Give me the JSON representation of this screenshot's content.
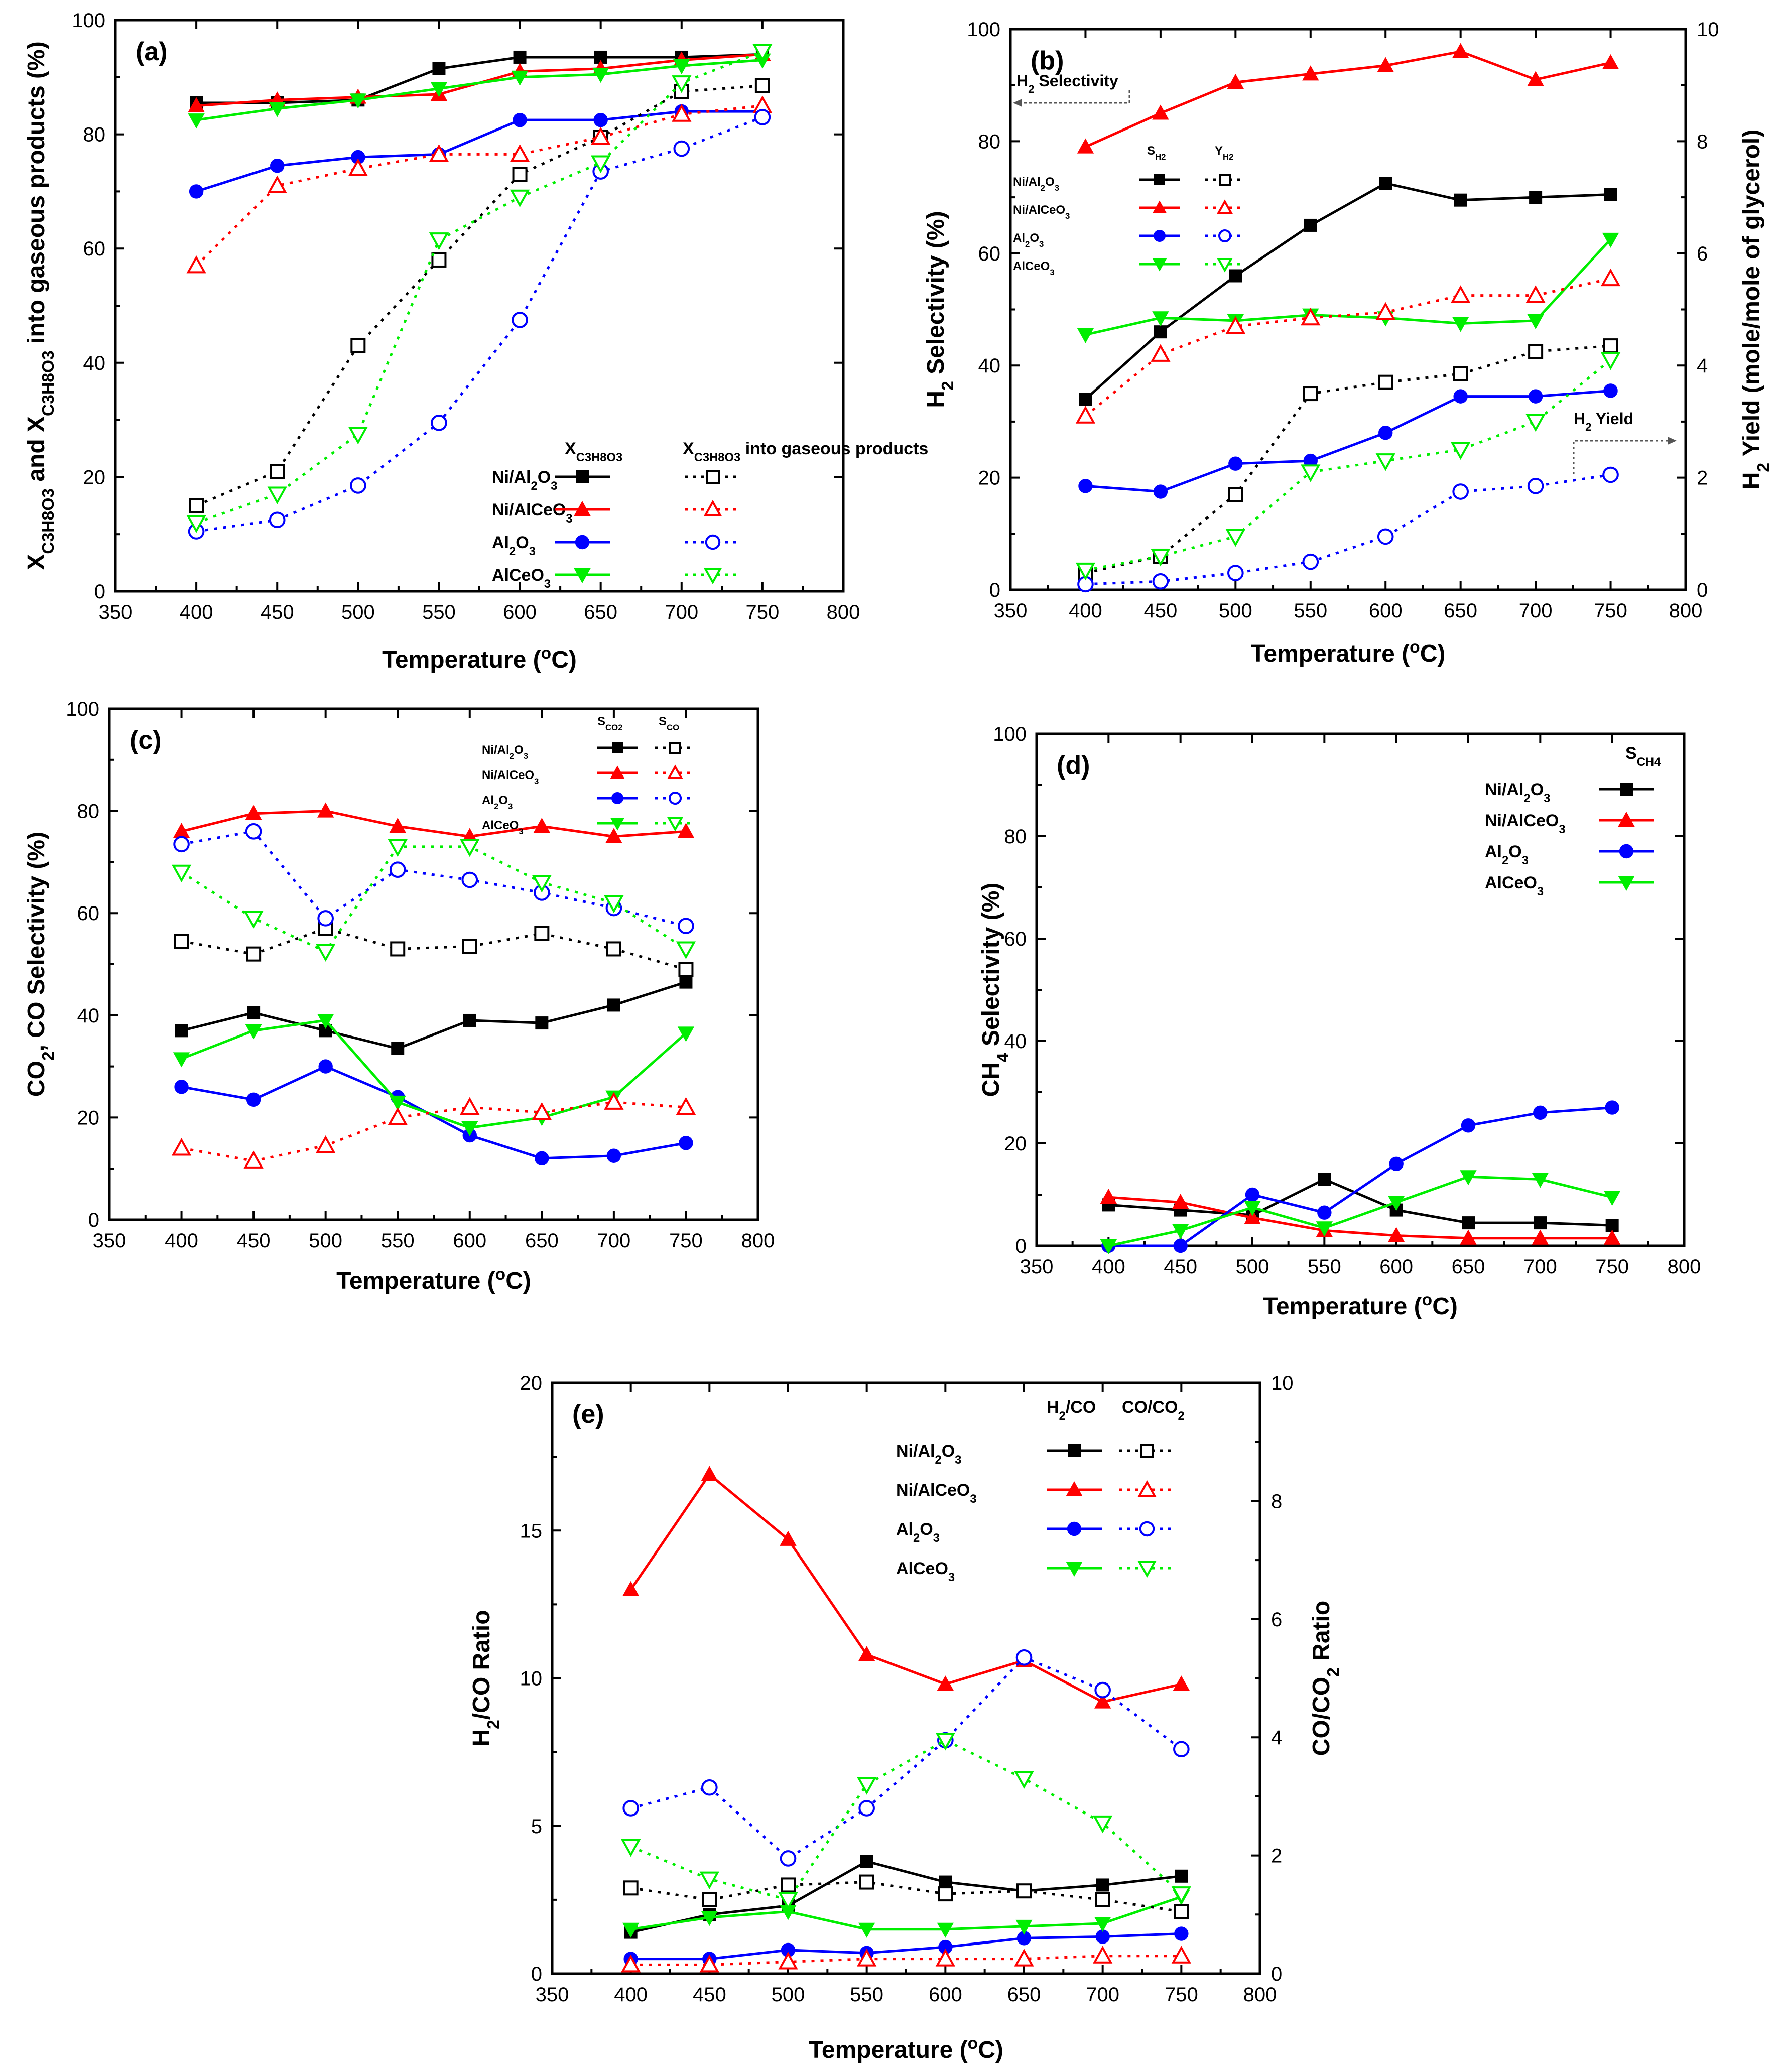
{
  "chart_data": [
    {
      "id": "a",
      "type": "line",
      "panel_label": "(a)",
      "x": [
        400,
        450,
        500,
        550,
        600,
        650,
        700,
        750
      ],
      "xlim": [
        350,
        800
      ],
      "xticks": [
        350,
        400,
        450,
        500,
        550,
        600,
        650,
        700,
        750,
        800
      ],
      "ylim": [
        0,
        100
      ],
      "yticks": [
        0,
        20,
        40,
        60,
        80,
        100
      ],
      "xlabel": "Temperature (°C)",
      "ylabel": "X_C3H8O3 and X_C3H8O3 into gaseous products (%)",
      "legend": {
        "position": "bottom-center",
        "col_headers": [
          "X_C3H8O3",
          "X_C3H8O3 into gaseous products"
        ]
      },
      "series": [
        {
          "name": "Ni/Al2O3",
          "color": "#000000",
          "marker": "square",
          "fill": true,
          "dash": false,
          "values": [
            85.5,
            85.5,
            86,
            91.5,
            93.5,
            93.5,
            93.5,
            94
          ]
        },
        {
          "name": "Ni/AlCeO3",
          "color": "#ff0000",
          "marker": "triangle-up",
          "fill": true,
          "dash": false,
          "values": [
            85,
            86,
            86.5,
            87,
            91,
            91.5,
            93,
            94
          ]
        },
        {
          "name": "Al2O3",
          "color": "#0000ff",
          "marker": "circle",
          "fill": true,
          "dash": false,
          "values": [
            70,
            74.5,
            76,
            76.5,
            82.5,
            82.5,
            84,
            84
          ]
        },
        {
          "name": "AlCeO3",
          "color": "#00ee00",
          "marker": "triangle-down",
          "fill": true,
          "dash": false,
          "values": [
            82.5,
            84.5,
            86,
            88,
            90,
            90.5,
            92,
            93
          ]
        },
        {
          "name": "Ni/Al2O3",
          "color": "#000000",
          "marker": "square",
          "fill": false,
          "dash": true,
          "values": [
            15,
            21,
            43,
            58,
            73,
            79.5,
            87.5,
            88.5
          ]
        },
        {
          "name": "Ni/AlCeO3",
          "color": "#ff0000",
          "marker": "triangle-up",
          "fill": false,
          "dash": true,
          "values": [
            57,
            71,
            74,
            76.5,
            76.5,
            79.5,
            83.5,
            85
          ]
        },
        {
          "name": "Al2O3",
          "color": "#0000ff",
          "marker": "circle",
          "fill": false,
          "dash": true,
          "values": [
            10.5,
            12.5,
            18.5,
            29.5,
            47.5,
            73.5,
            77.5,
            83
          ]
        },
        {
          "name": "AlCeO3",
          "color": "#00ee00",
          "marker": "triangle-down",
          "fill": false,
          "dash": true,
          "values": [
            12,
            17,
            27.5,
            61.5,
            69,
            75,
            89,
            94.5
          ]
        }
      ]
    },
    {
      "id": "b",
      "type": "line",
      "panel_label": "(b)",
      "x": [
        400,
        450,
        500,
        550,
        600,
        650,
        700,
        750
      ],
      "xlim": [
        350,
        800
      ],
      "xticks": [
        350,
        400,
        450,
        500,
        550,
        600,
        650,
        700,
        750,
        800
      ],
      "ylim": [
        0,
        100
      ],
      "yticks": [
        0,
        20,
        40,
        60,
        80,
        100
      ],
      "y2lim": [
        0,
        10
      ],
      "y2ticks": [
        0,
        2,
        4,
        6,
        8,
        10
      ],
      "xlabel": "Temperature (°C)",
      "ylabel": "H2 Selectivity (%)",
      "y2label": "H2 Yield (mole/mole of glycerol)",
      "annotations": [
        "H2 Selectivity",
        "H2 Yield"
      ],
      "legend": {
        "position": "top-left",
        "col_headers": [
          "S_H2",
          "Y_H2"
        ]
      },
      "series": [
        {
          "name": "Ni/Al2O3",
          "axis": "y",
          "color": "#000000",
          "marker": "square",
          "fill": true,
          "dash": false,
          "values": [
            34,
            46,
            56,
            65,
            72.5,
            69.5,
            70,
            70.5
          ]
        },
        {
          "name": "Ni/AlCeO3",
          "axis": "y",
          "color": "#ff0000",
          "marker": "triangle-up",
          "fill": true,
          "dash": false,
          "values": [
            79,
            85,
            90.5,
            92,
            93.5,
            96,
            91,
            94
          ]
        },
        {
          "name": "Al2O3",
          "axis": "y",
          "color": "#0000ff",
          "marker": "circle",
          "fill": true,
          "dash": false,
          "values": [
            18.5,
            17.5,
            22.5,
            23,
            28,
            34.5,
            34.5,
            35.5
          ]
        },
        {
          "name": "AlCeO3",
          "axis": "y",
          "color": "#00ee00",
          "marker": "triangle-down",
          "fill": true,
          "dash": false,
          "values": [
            45.5,
            48.5,
            48,
            49,
            48.5,
            47.5,
            48,
            62.5
          ]
        },
        {
          "name": "Ni/Al2O3",
          "axis": "y2",
          "color": "#000000",
          "marker": "square",
          "fill": false,
          "dash": true,
          "values": [
            0.3,
            0.6,
            1.7,
            3.5,
            3.7,
            3.85,
            4.25,
            4.35
          ]
        },
        {
          "name": "Ni/AlCeO3",
          "axis": "y2",
          "color": "#ff0000",
          "marker": "triangle-up",
          "fill": false,
          "dash": true,
          "values": [
            3.1,
            4.2,
            4.7,
            4.85,
            4.95,
            5.25,
            5.25,
            5.55
          ]
        },
        {
          "name": "Al2O3",
          "axis": "y2",
          "color": "#0000ff",
          "marker": "circle",
          "fill": false,
          "dash": true,
          "values": [
            0.1,
            0.15,
            0.3,
            0.5,
            0.95,
            1.75,
            1.85,
            2.05
          ]
        },
        {
          "name": "AlCeO3",
          "axis": "y2",
          "color": "#00ee00",
          "marker": "triangle-down",
          "fill": false,
          "dash": true,
          "values": [
            0.35,
            0.6,
            0.95,
            2.1,
            2.3,
            2.5,
            3.0,
            4.1
          ]
        }
      ]
    },
    {
      "id": "c",
      "type": "line",
      "panel_label": "(c)",
      "x": [
        400,
        450,
        500,
        550,
        600,
        650,
        700,
        750
      ],
      "xlim": [
        350,
        800
      ],
      "xticks": [
        350,
        400,
        450,
        500,
        550,
        600,
        650,
        700,
        750,
        800
      ],
      "ylim": [
        0,
        100
      ],
      "yticks": [
        0,
        20,
        40,
        60,
        80,
        100
      ],
      "xlabel": "Temperature (°C)",
      "ylabel": "CO2, CO Selectivity (%)",
      "legend": {
        "position": "top-right",
        "col_headers": [
          "S_CO2",
          "S_CO"
        ]
      },
      "series": [
        {
          "name": "Ni/Al2O3",
          "color": "#000000",
          "marker": "square",
          "fill": true,
          "dash": false,
          "values": [
            37,
            40.5,
            37,
            33.5,
            39,
            38.5,
            42,
            46.5
          ]
        },
        {
          "name": "Ni/AlCeO3",
          "color": "#ff0000",
          "marker": "triangle-up",
          "fill": true,
          "dash": false,
          "values": [
            76,
            79.5,
            80,
            77,
            75,
            77,
            75,
            76
          ]
        },
        {
          "name": "Al2O3",
          "color": "#0000ff",
          "marker": "circle",
          "fill": true,
          "dash": false,
          "values": [
            26,
            23.5,
            30,
            24,
            16.5,
            12,
            12.5,
            15
          ]
        },
        {
          "name": "AlCeO3",
          "color": "#00ee00",
          "marker": "triangle-down",
          "fill": true,
          "dash": false,
          "values": [
            31.5,
            37,
            39,
            23,
            18,
            20,
            24,
            36.5
          ]
        },
        {
          "name": "Ni/Al2O3",
          "color": "#000000",
          "marker": "square",
          "fill": false,
          "dash": true,
          "values": [
            54.5,
            52,
            57,
            53,
            53.5,
            56,
            53,
            49
          ]
        },
        {
          "name": "Ni/AlCeO3",
          "color": "#ff0000",
          "marker": "triangle-up",
          "fill": false,
          "dash": true,
          "values": [
            14,
            11.5,
            14.5,
            20,
            22,
            21,
            23,
            22
          ]
        },
        {
          "name": "Al2O3",
          "color": "#0000ff",
          "marker": "circle",
          "fill": false,
          "dash": true,
          "values": [
            73.5,
            76,
            59,
            68.5,
            66.5,
            64,
            61,
            57.5
          ]
        },
        {
          "name": "AlCeO3",
          "color": "#00ee00",
          "marker": "triangle-down",
          "fill": false,
          "dash": true,
          "values": [
            68,
            59,
            52.5,
            73,
            73,
            66,
            62,
            53
          ]
        }
      ]
    },
    {
      "id": "d",
      "type": "line",
      "panel_label": "(d)",
      "x": [
        400,
        450,
        500,
        550,
        600,
        650,
        700,
        750
      ],
      "xlim": [
        350,
        800
      ],
      "xticks": [
        350,
        400,
        450,
        500,
        550,
        600,
        650,
        700,
        750,
        800
      ],
      "ylim": [
        0,
        100
      ],
      "yticks": [
        0,
        20,
        40,
        60,
        80,
        100
      ],
      "xlabel": "Temperature (°C)",
      "ylabel": "CH4 Selectivity (%)",
      "legend": {
        "position": "top-right",
        "col_headers": [
          "S_CH4"
        ]
      },
      "series": [
        {
          "name": "Ni/Al2O3",
          "color": "#000000",
          "marker": "square",
          "fill": true,
          "dash": false,
          "values": [
            8,
            7,
            6,
            13,
            7,
            4.5,
            4.5,
            4
          ]
        },
        {
          "name": "Ni/AlCeO3",
          "color": "#ff0000",
          "marker": "triangle-up",
          "fill": true,
          "dash": false,
          "values": [
            9.5,
            8.5,
            5.5,
            3,
            2,
            1.5,
            1.5,
            1.5
          ]
        },
        {
          "name": "Al2O3",
          "color": "#0000ff",
          "marker": "circle",
          "fill": true,
          "dash": false,
          "values": [
            0,
            0,
            10,
            6.5,
            16,
            23.5,
            26,
            27
          ]
        },
        {
          "name": "AlCeO3",
          "color": "#00ee00",
          "marker": "triangle-down",
          "fill": true,
          "dash": false,
          "values": [
            0,
            3,
            7.5,
            3.5,
            8.5,
            13.5,
            13,
            9.5
          ]
        }
      ]
    },
    {
      "id": "e",
      "type": "line",
      "panel_label": "(e)",
      "x": [
        400,
        450,
        500,
        550,
        600,
        650,
        700,
        750
      ],
      "xlim": [
        350,
        800
      ],
      "xticks": [
        350,
        400,
        450,
        500,
        550,
        600,
        650,
        700,
        750,
        800
      ],
      "ylim": [
        0,
        20
      ],
      "yticks": [
        0,
        5,
        10,
        15,
        20
      ],
      "y2lim": [
        0,
        10
      ],
      "y2ticks": [
        0,
        2,
        4,
        6,
        8,
        10
      ],
      "xlabel": "Temperature (°C)",
      "ylabel": "H2/CO Ratio",
      "y2label": "CO/CO2 Ratio",
      "legend": {
        "position": "top-right",
        "col_headers": [
          "H2/CO",
          "CO/CO2"
        ]
      },
      "series": [
        {
          "name": "Ni/Al2O3",
          "axis": "y",
          "color": "#000000",
          "marker": "square",
          "fill": true,
          "dash": false,
          "values": [
            1.4,
            2.0,
            2.3,
            3.8,
            3.1,
            2.8,
            3.0,
            3.3
          ]
        },
        {
          "name": "Ni/AlCeO3",
          "axis": "y",
          "color": "#ff0000",
          "marker": "triangle-up",
          "fill": true,
          "dash": false,
          "values": [
            13.0,
            16.9,
            14.7,
            10.8,
            9.8,
            10.6,
            9.2,
            9.8
          ]
        },
        {
          "name": "Al2O3",
          "axis": "y",
          "color": "#0000ff",
          "marker": "circle",
          "fill": true,
          "dash": false,
          "values": [
            0.5,
            0.5,
            0.8,
            0.7,
            0.9,
            1.2,
            1.25,
            1.35
          ]
        },
        {
          "name": "AlCeO3",
          "axis": "y",
          "color": "#00ee00",
          "marker": "triangle-down",
          "fill": true,
          "dash": false,
          "values": [
            1.5,
            1.9,
            2.1,
            1.5,
            1.5,
            1.6,
            1.7,
            2.6
          ]
        },
        {
          "name": "Ni/Al2O3",
          "axis": "y2",
          "color": "#000000",
          "marker": "square",
          "fill": false,
          "dash": true,
          "values": [
            1.45,
            1.25,
            1.5,
            1.55,
            1.35,
            1.4,
            1.25,
            1.05
          ]
        },
        {
          "name": "Ni/AlCeO3",
          "axis": "y2",
          "color": "#ff0000",
          "marker": "triangle-up",
          "fill": false,
          "dash": true,
          "values": [
            0.15,
            0.15,
            0.2,
            0.25,
            0.25,
            0.25,
            0.3,
            0.3
          ]
        },
        {
          "name": "Al2O3",
          "axis": "y2",
          "color": "#0000ff",
          "marker": "circle",
          "fill": false,
          "dash": true,
          "values": [
            2.8,
            3.15,
            1.95,
            2.8,
            3.95,
            5.35,
            4.8,
            3.8
          ]
        },
        {
          "name": "AlCeO3",
          "axis": "y2",
          "color": "#00ee00",
          "marker": "triangle-down",
          "fill": false,
          "dash": true,
          "values": [
            2.15,
            1.6,
            1.25,
            3.2,
            3.95,
            3.3,
            2.55,
            1.35
          ]
        }
      ]
    }
  ]
}
